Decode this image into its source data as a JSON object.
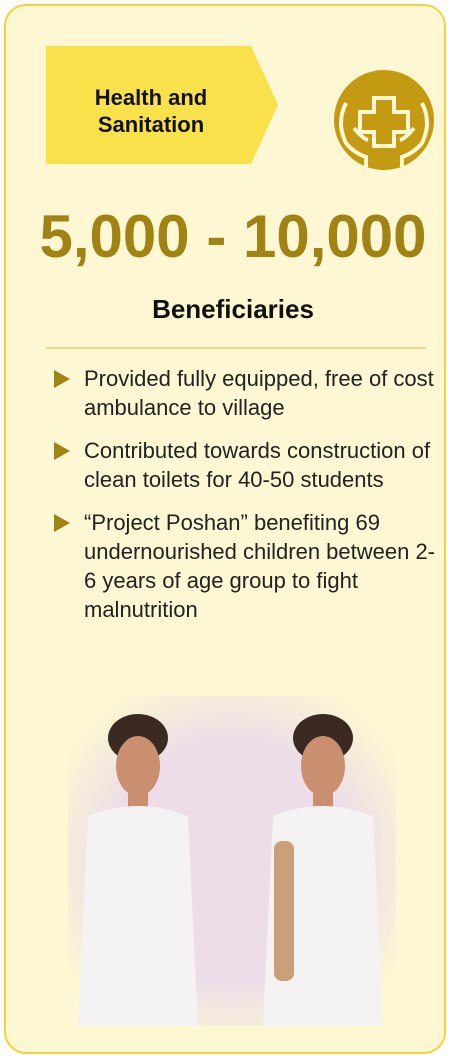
{
  "header": {
    "title": "Health and Sanitation"
  },
  "stat": {
    "value": "5,000 - 10,000",
    "label": "Beneficiaries"
  },
  "bullets": [
    "Provided fully equipped, free of cost ambulance to village",
    "Contributed towards construction of clean toilets for 40-50 students",
    "“Project Poshan” benefiting 69 undernourished children between 2- 6 years of age group to fight malnutrition"
  ]
}
